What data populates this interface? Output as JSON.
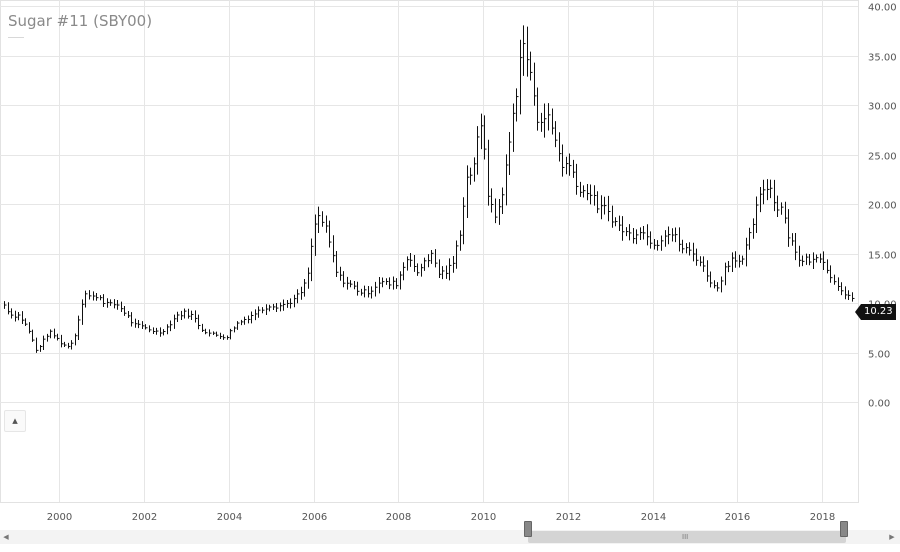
{
  "chart_data": {
    "type": "bar",
    "title": "Sugar #11 (SBY00)",
    "ohlc_style": "HLC monthly bars",
    "x_ticks": [
      "2000",
      "2002",
      "2004",
      "2006",
      "2008",
      "2010",
      "2012",
      "2014",
      "2016",
      "2018"
    ],
    "y_ticks": [
      "0.00",
      "5.00",
      "10.00",
      "15.00",
      "20.00",
      "25.00",
      "30.00",
      "35.00",
      "40.00"
    ],
    "ylim": [
      0,
      40
    ],
    "xlim": [
      1998.6,
      2018.85
    ],
    "grid": true,
    "y_axis_side": "right",
    "last_value": "10.23",
    "points": [
      [
        1998.7,
        9.8
      ],
      [
        1998.9,
        8.6
      ],
      [
        1999.0,
        8.9
      ],
      [
        1999.15,
        8.2
      ],
      [
        1999.3,
        7.0
      ],
      [
        1999.45,
        5.2
      ],
      [
        1999.6,
        6.1
      ],
      [
        1999.75,
        7.1
      ],
      [
        1999.9,
        6.6
      ],
      [
        2000.05,
        5.9
      ],
      [
        2000.2,
        5.6
      ],
      [
        2000.35,
        6.4
      ],
      [
        2000.5,
        9.5
      ],
      [
        2000.6,
        11.0
      ],
      [
        2000.75,
        10.5
      ],
      [
        2000.9,
        10.8
      ],
      [
        2001.05,
        10.1
      ],
      [
        2001.2,
        9.8
      ],
      [
        2001.35,
        9.9
      ],
      [
        2001.55,
        9.0
      ],
      [
        2001.75,
        7.8
      ],
      [
        2001.95,
        7.6
      ],
      [
        2002.15,
        7.3
      ],
      [
        2002.35,
        7.0
      ],
      [
        2002.55,
        7.6
      ],
      [
        2002.75,
        8.7
      ],
      [
        2002.95,
        9.0
      ],
      [
        2003.15,
        8.7
      ],
      [
        2003.35,
        7.4
      ],
      [
        2003.55,
        6.9
      ],
      [
        2003.75,
        6.7
      ],
      [
        2003.95,
        6.6
      ],
      [
        2004.15,
        7.8
      ],
      [
        2004.35,
        8.3
      ],
      [
        2004.55,
        8.8
      ],
      [
        2004.75,
        9.3
      ],
      [
        2004.95,
        9.8
      ],
      [
        2005.15,
        9.7
      ],
      [
        2005.35,
        9.9
      ],
      [
        2005.55,
        10.4
      ],
      [
        2005.75,
        11.3
      ],
      [
        2005.9,
        13.5
      ],
      [
        2006.0,
        17.5
      ],
      [
        2006.1,
        18.8
      ],
      [
        2006.25,
        17.9
      ],
      [
        2006.4,
        15.5
      ],
      [
        2006.55,
        12.8
      ],
      [
        2006.75,
        12.1
      ],
      [
        2006.95,
        11.6
      ],
      [
        2007.15,
        11.0
      ],
      [
        2007.35,
        11.3
      ],
      [
        2007.55,
        12.2
      ],
      [
        2007.75,
        11.9
      ],
      [
        2007.95,
        12.0
      ],
      [
        2008.1,
        13.5
      ],
      [
        2008.25,
        15.0
      ],
      [
        2008.45,
        12.8
      ],
      [
        2008.6,
        14.3
      ],
      [
        2008.8,
        14.8
      ],
      [
        2008.95,
        13.0
      ],
      [
        2009.15,
        13.2
      ],
      [
        2009.3,
        14.2
      ],
      [
        2009.45,
        17.2
      ],
      [
        2009.6,
        22.5
      ],
      [
        2009.75,
        23.5
      ],
      [
        2009.9,
        27.0
      ],
      [
        2010.0,
        28.0
      ],
      [
        2010.1,
        21.5
      ],
      [
        2010.25,
        18.5
      ],
      [
        2010.4,
        20.0
      ],
      [
        2010.55,
        24.0
      ],
      [
        2010.7,
        29.0
      ],
      [
        2010.8,
        32.0
      ],
      [
        2010.9,
        36.5
      ],
      [
        2011.0,
        35.0
      ],
      [
        2011.1,
        34.0
      ],
      [
        2011.25,
        28.5
      ],
      [
        2011.4,
        29.0
      ],
      [
        2011.55,
        28.5
      ],
      [
        2011.7,
        26.5
      ],
      [
        2011.85,
        24.0
      ],
      [
        2012.0,
        24.0
      ],
      [
        2012.15,
        23.0
      ],
      [
        2012.3,
        21.0
      ],
      [
        2012.45,
        21.5
      ],
      [
        2012.6,
        20.5
      ],
      [
        2012.75,
        19.5
      ],
      [
        2012.9,
        19.5
      ],
      [
        2013.1,
        18.2
      ],
      [
        2013.3,
        17.3
      ],
      [
        2013.5,
        16.8
      ],
      [
        2013.7,
        17.5
      ],
      [
        2013.9,
        16.5
      ],
      [
        2014.1,
        16.0
      ],
      [
        2014.3,
        17.2
      ],
      [
        2014.5,
        16.8
      ],
      [
        2014.7,
        15.5
      ],
      [
        2014.9,
        15.2
      ],
      [
        2015.1,
        14.3
      ],
      [
        2015.3,
        12.8
      ],
      [
        2015.5,
        11.2
      ],
      [
        2015.7,
        13.5
      ],
      [
        2015.9,
        14.8
      ],
      [
        2016.1,
        14.0
      ],
      [
        2016.3,
        17.0
      ],
      [
        2016.45,
        19.5
      ],
      [
        2016.6,
        21.5
      ],
      [
        2016.75,
        22.0
      ],
      [
        2016.9,
        19.8
      ],
      [
        2017.05,
        19.8
      ],
      [
        2017.2,
        17.0
      ],
      [
        2017.35,
        15.5
      ],
      [
        2017.5,
        14.0
      ],
      [
        2017.65,
        14.5
      ],
      [
        2017.8,
        14.2
      ],
      [
        2017.95,
        14.8
      ],
      [
        2018.1,
        13.8
      ],
      [
        2018.25,
        12.2
      ],
      [
        2018.4,
        11.7
      ],
      [
        2018.55,
        11.0
      ],
      [
        2018.7,
        10.23
      ]
    ]
  },
  "ui": {
    "collapse_icon": "chevron-up-icon",
    "scroll_left_icon": "triangle-left-icon",
    "scroll_right_icon": "triangle-right-icon",
    "thumb_grip": "III"
  }
}
